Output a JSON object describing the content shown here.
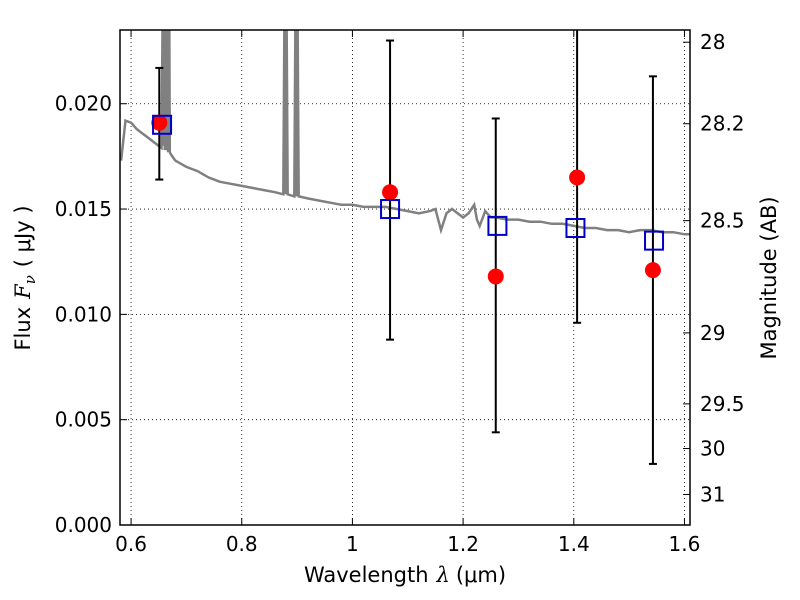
{
  "chart_data": {
    "type": "scatter",
    "xlabel": "Wavelength",
    "xlabel_symbol": "λ",
    "xlabel_unit": "(μm)",
    "ylabel": "Flux",
    "ylabel_symbol": "F",
    "ylabel_subscript": "ν",
    "ylabel_unit": "( μJy )",
    "ylabel_right": "Magnitude (AB)",
    "xlim": [
      0.58,
      1.61
    ],
    "ylim": [
      0.0,
      0.0235
    ],
    "grid": true,
    "grid_style": "dotted",
    "x_ticks": [
      0.6,
      0.8,
      1.0,
      1.2,
      1.4,
      1.6
    ],
    "x_tick_labels": [
      "0.6",
      "0.8",
      "1",
      "1.2",
      "1.4",
      "1.6"
    ],
    "y_ticks": [
      0.0,
      0.005,
      0.01,
      0.015,
      0.02
    ],
    "y_tick_labels": [
      "0.000",
      "0.005",
      "0.010",
      "0.015",
      "0.020"
    ],
    "right_ticks": [
      {
        "label": "28",
        "flux": 0.02292
      },
      {
        "label": "28.2",
        "flux": 0.01905
      },
      {
        "label": "28.5",
        "flux": 0.01445
      },
      {
        "label": "29",
        "flux": 0.00912
      },
      {
        "label": "29.5",
        "flux": 0.00575
      },
      {
        "label": "30",
        "flux": 0.00363
      },
      {
        "label": "31",
        "flux": 0.00145
      }
    ],
    "colors": {
      "spectrum": "#808080",
      "observed": "#ff0000",
      "model": "#0000cc",
      "errorbar": "#000000"
    },
    "spectrum": {
      "x": [
        0.582,
        0.59,
        0.6,
        0.61,
        0.62,
        0.63,
        0.64,
        0.65,
        0.655,
        0.657,
        0.658,
        0.659,
        0.661,
        0.662,
        0.664,
        0.666,
        0.667,
        0.669,
        0.67,
        0.672,
        0.68,
        0.7,
        0.72,
        0.74,
        0.76,
        0.78,
        0.8,
        0.82,
        0.84,
        0.86,
        0.875,
        0.877,
        0.879,
        0.881,
        0.883,
        0.895,
        0.897,
        0.899,
        0.901,
        0.903,
        0.92,
        0.94,
        0.96,
        0.98,
        1.0,
        1.02,
        1.04,
        1.06,
        1.08,
        1.1,
        1.12,
        1.14,
        1.15,
        1.16,
        1.17,
        1.18,
        1.19,
        1.2,
        1.21,
        1.22,
        1.225,
        1.23,
        1.24,
        1.25,
        1.26,
        1.28,
        1.3,
        1.32,
        1.34,
        1.36,
        1.38,
        1.4,
        1.42,
        1.44,
        1.46,
        1.48,
        1.5,
        1.52,
        1.54,
        1.56,
        1.58,
        1.6,
        1.61
      ],
      "y": [
        0.0173,
        0.0192,
        0.0191,
        0.0188,
        0.0186,
        0.0184,
        0.0182,
        0.018,
        0.0179,
        0.024,
        0.018,
        0.024,
        0.0178,
        0.024,
        0.0178,
        0.024,
        0.0177,
        0.024,
        0.0177,
        0.0176,
        0.0173,
        0.017,
        0.0168,
        0.0165,
        0.0163,
        0.0162,
        0.0161,
        0.016,
        0.0159,
        0.0158,
        0.0157,
        0.024,
        0.0157,
        0.024,
        0.0157,
        0.0156,
        0.024,
        0.0156,
        0.024,
        0.0156,
        0.0155,
        0.0154,
        0.0153,
        0.0152,
        0.0152,
        0.0151,
        0.0151,
        0.0151,
        0.015,
        0.0149,
        0.0148,
        0.0149,
        0.015,
        0.014,
        0.0148,
        0.015,
        0.0148,
        0.0146,
        0.0148,
        0.0152,
        0.0145,
        0.0142,
        0.0149,
        0.0146,
        0.0146,
        0.0145,
        0.0145,
        0.0144,
        0.0144,
        0.0143,
        0.0143,
        0.0142,
        0.0141,
        0.0141,
        0.014,
        0.014,
        0.0139,
        0.014,
        0.014,
        0.0139,
        0.0139,
        0.0138,
        0.0138
      ]
    },
    "observed": {
      "x": [
        0.651,
        1.068,
        1.259,
        1.406,
        1.543
      ],
      "y": [
        0.0191,
        0.0158,
        0.0118,
        0.0165,
        0.0121
      ],
      "err_low": [
        0.0164,
        0.0088,
        0.0044,
        0.0096,
        0.0029
      ],
      "err_high": [
        0.0217,
        0.023,
        0.0193,
        0.0245,
        0.0213
      ]
    },
    "model": {
      "x": [
        0.656,
        1.068,
        1.262,
        1.403,
        1.545
      ],
      "y": [
        0.019,
        0.015,
        0.0142,
        0.0141,
        0.0135
      ]
    }
  }
}
